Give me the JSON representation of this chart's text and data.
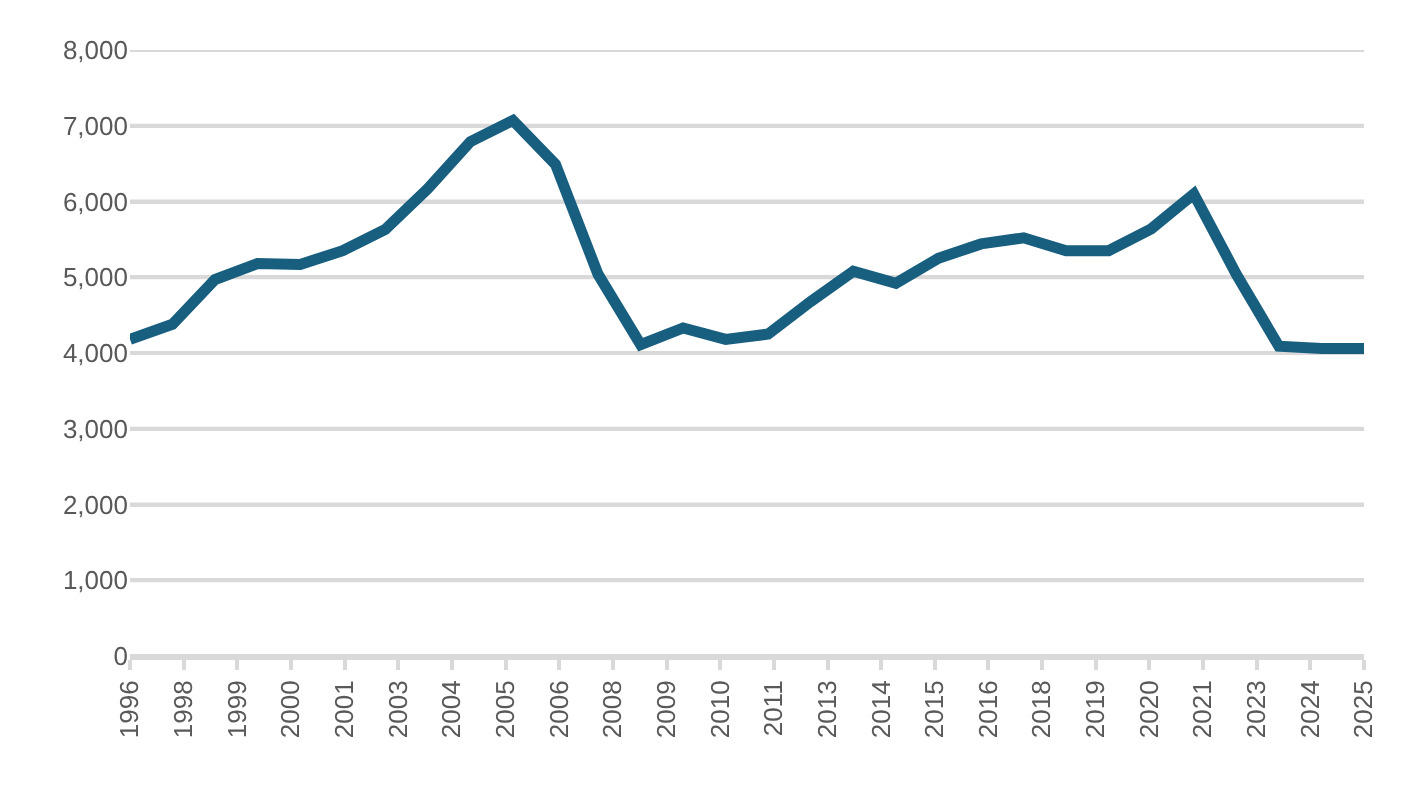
{
  "chart_data": {
    "type": "line",
    "x": [
      "1996-10-01",
      "1997-10-01",
      "1998-10-01",
      "1999-10-01",
      "2000-10-01",
      "2001-10-01",
      "2002-10-01",
      "2003-10-01",
      "2004-10-01",
      "2005-10-01",
      "2006-10-01",
      "2007-10-01",
      "2008-10-01",
      "2009-10-01",
      "2010-10-01",
      "2011-10-01",
      "2012-10-01",
      "2013-10-01",
      "2014-10-01",
      "2015-10-01",
      "2016-10-01",
      "2017-10-01",
      "2018-10-01",
      "2019-10-01",
      "2020-10-01",
      "2021-10-01",
      "2022-10-01",
      "2023-10-01",
      "2024-10-01",
      "2025-10-01"
    ],
    "series": [
      {
        "color": "#175e7f",
        "values": [
          4180,
          4380,
          4970,
          5180,
          5170,
          5350,
          5630,
          6170,
          6790,
          7070,
          6490,
          5040,
          4110,
          4330,
          4180,
          4250,
          4680,
          5080,
          4920,
          5250,
          5440,
          5520,
          5350,
          5350,
          5640,
          6100,
          5040,
          4090,
          4060,
          4060
        ]
      }
    ],
    "xlim": [
      "1996-10-01",
      "2025-10-01"
    ],
    "xticks": [
      {
        "value": "1996-10-01",
        "label": "1996"
      },
      {
        "value": "1998-01-05",
        "label": "1998"
      },
      {
        "value": "1999-04-10",
        "label": "1999"
      },
      {
        "value": "2000-07-14",
        "label": "2000"
      },
      {
        "value": "2001-10-17",
        "label": "2001"
      },
      {
        "value": "2003-01-20",
        "label": "2003"
      },
      {
        "value": "2004-04-25",
        "label": "2004"
      },
      {
        "value": "2005-07-30",
        "label": "2005"
      },
      {
        "value": "2006-11-02",
        "label": "2006"
      },
      {
        "value": "2008-02-05",
        "label": "2008"
      },
      {
        "value": "2009-05-11",
        "label": "2009"
      },
      {
        "value": "2010-08-14",
        "label": "2010"
      },
      {
        "value": "2011-11-17",
        "label": "2011"
      },
      {
        "value": "2013-02-21",
        "label": "2013"
      },
      {
        "value": "2014-05-27",
        "label": "2014"
      },
      {
        "value": "2015-08-30",
        "label": "2015"
      },
      {
        "value": "2016-12-03",
        "label": "2016"
      },
      {
        "value": "2018-03-08",
        "label": "2018"
      },
      {
        "value": "2019-06-12",
        "label": "2019"
      },
      {
        "value": "2020-09-15",
        "label": "2020"
      },
      {
        "value": "2021-12-19",
        "label": "2021"
      },
      {
        "value": "2023-03-25",
        "label": "2023"
      },
      {
        "value": "2024-06-28",
        "label": "2024"
      },
      {
        "value": "2025-10-01",
        "label": "2025"
      }
    ],
    "ylim": [
      0,
      8000
    ],
    "yticks": [
      {
        "value": 0,
        "label": "0"
      },
      {
        "value": 1000,
        "label": "1,000"
      },
      {
        "value": 2000,
        "label": "2,000"
      },
      {
        "value": 3000,
        "label": "3,000"
      },
      {
        "value": 4000,
        "label": "4,000"
      },
      {
        "value": 5000,
        "label": "5,000"
      },
      {
        "value": 6000,
        "label": "6,000"
      },
      {
        "value": 7000,
        "label": "7,000"
      },
      {
        "value": 8000,
        "label": "8,000"
      }
    ],
    "grid": "y",
    "line_style": "solid",
    "marker": "none"
  }
}
